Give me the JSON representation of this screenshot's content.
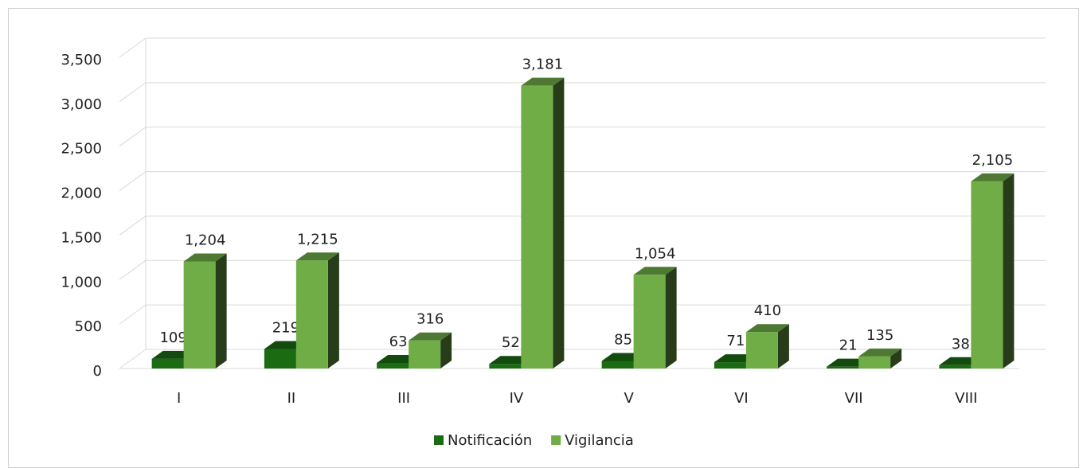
{
  "chart_data": {
    "type": "bar3d",
    "categories": [
      "I",
      "II",
      "III",
      "IV",
      "V",
      "VI",
      "VII",
      "VIII"
    ],
    "series": [
      {
        "name": "Notificación",
        "color": "#1a6b12",
        "values": [
          109,
          219,
          63,
          52,
          85,
          71,
          21,
          38
        ]
      },
      {
        "name": "Vigilancia",
        "color": "#70ad47",
        "values": [
          1204,
          1215,
          316,
          3181,
          1054,
          410,
          135,
          2105
        ],
        "value_labels": [
          "1,204",
          "1,215",
          "316",
          "3,181",
          "1,054",
          "410",
          "135",
          "2,105"
        ]
      }
    ],
    "ylim": [
      0,
      3500
    ],
    "yticks": [
      0,
      500,
      {
        "value": 1000,
        "label": "1,000"
      },
      {
        "value": 1500,
        "label": "1,500"
      },
      {
        "value": 2000,
        "label": "2,000"
      },
      {
        "value": 2500,
        "label": "2,500"
      },
      {
        "value": 3000,
        "label": "3,000"
      },
      {
        "value": 3500,
        "label": "3,500"
      }
    ],
    "grid": true,
    "legend": "bottom"
  }
}
